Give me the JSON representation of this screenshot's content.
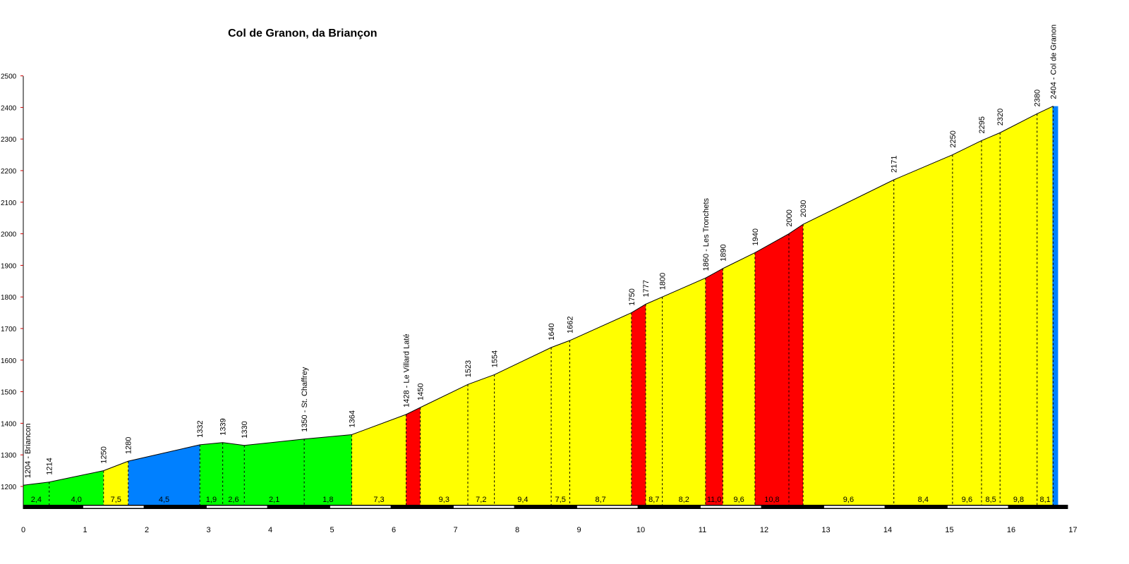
{
  "title": "Col de Granon, da Briançon",
  "chart_data": {
    "type": "area",
    "title": "Col de Granon, da Briançon",
    "xlabel": "",
    "ylabel": "",
    "xlim": [
      0,
      17
    ],
    "ylim": [
      1140,
      2500
    ],
    "x_ticks": [
      0,
      1,
      2,
      3,
      4,
      5,
      6,
      7,
      8,
      9,
      10,
      11,
      12,
      13,
      14,
      15,
      16,
      17
    ],
    "y_ticks": [
      1200,
      1300,
      1400,
      1500,
      1600,
      1700,
      1800,
      1900,
      2000,
      2100,
      2200,
      2300,
      2400,
      2500
    ],
    "grid": false,
    "profile": [
      {
        "km": 0.0,
        "alt": 1204,
        "label": "1204 - Briancon"
      },
      {
        "km": 0.42,
        "alt": 1214,
        "label": "1214"
      },
      {
        "km": 1.3,
        "alt": 1250,
        "label": "1250"
      },
      {
        "km": 1.7,
        "alt": 1280,
        "label": "1280"
      },
      {
        "km": 2.86,
        "alt": 1332,
        "label": "1332"
      },
      {
        "km": 3.23,
        "alt": 1339,
        "label": "1339"
      },
      {
        "km": 3.58,
        "alt": 1330,
        "label": "1330"
      },
      {
        "km": 4.55,
        "alt": 1350,
        "label": "1350 - St. Chaffrey"
      },
      {
        "km": 5.32,
        "alt": 1364,
        "label": "1364"
      },
      {
        "km": 6.2,
        "alt": 1428,
        "label": "1428 - Le Villard Laté"
      },
      {
        "km": 6.43,
        "alt": 1450,
        "label": "1450"
      },
      {
        "km": 7.2,
        "alt": 1523,
        "label": "1523"
      },
      {
        "km": 7.63,
        "alt": 1554,
        "label": "1554"
      },
      {
        "km": 8.55,
        "alt": 1640,
        "label": "1640"
      },
      {
        "km": 8.85,
        "alt": 1662,
        "label": "1662"
      },
      {
        "km": 9.85,
        "alt": 1750,
        "label": "1750"
      },
      {
        "km": 10.08,
        "alt": 1777,
        "label": "1777"
      },
      {
        "km": 10.35,
        "alt": 1800,
        "label": "1800"
      },
      {
        "km": 11.05,
        "alt": 1860,
        "label": "1860 - Les Tronchets"
      },
      {
        "km": 11.33,
        "alt": 1890,
        "label": "1890"
      },
      {
        "km": 11.85,
        "alt": 1940,
        "label": "1940"
      },
      {
        "km": 12.4,
        "alt": 2000,
        "label": "2000"
      },
      {
        "km": 12.63,
        "alt": 2030,
        "label": "2030"
      },
      {
        "km": 14.1,
        "alt": 2171,
        "label": "2171"
      },
      {
        "km": 15.05,
        "alt": 2250,
        "label": "2250"
      },
      {
        "km": 15.52,
        "alt": 2295,
        "label": "2295"
      },
      {
        "km": 15.82,
        "alt": 2320,
        "label": "2320"
      },
      {
        "km": 16.42,
        "alt": 2380,
        "label": "2380"
      },
      {
        "km": 16.68,
        "alt": 2404,
        "label": "2404 - Col de Granon"
      }
    ],
    "segments": [
      {
        "gradient": "2,4",
        "color": "#00ff00"
      },
      {
        "gradient": "4,0",
        "color": "#00ff00"
      },
      {
        "gradient": "7,5",
        "color": "#ffff00"
      },
      {
        "gradient": "4,5",
        "color": "#0080ff"
      },
      {
        "gradient": "1,9",
        "color": "#00ff00"
      },
      {
        "gradient": "2,6",
        "color": "#00ff00"
      },
      {
        "gradient": "2,1",
        "color": "#00ff00"
      },
      {
        "gradient": "1,8",
        "color": "#00ff00"
      },
      {
        "gradient": "7,3",
        "color": "#ffff00"
      },
      {
        "gradient": "",
        "color": "#ff0000"
      },
      {
        "gradient": "9,3",
        "color": "#ffff00"
      },
      {
        "gradient": "7,2",
        "color": "#ffff00"
      },
      {
        "gradient": "9,4",
        "color": "#ffff00"
      },
      {
        "gradient": "7,5",
        "color": "#ffff00"
      },
      {
        "gradient": "8,7",
        "color": "#ffff00"
      },
      {
        "gradient": "",
        "color": "#ff0000"
      },
      {
        "gradient": "8,7",
        "color": "#ffff00"
      },
      {
        "gradient": "8,2",
        "color": "#ffff00"
      },
      {
        "gradient": "11,0",
        "color": "#ff0000"
      },
      {
        "gradient": "9,6",
        "color": "#ffff00"
      },
      {
        "gradient": "10,8",
        "color": "#ff0000"
      },
      {
        "gradient": "",
        "color": "#ff0000"
      },
      {
        "gradient": "9,6",
        "color": "#ffff00"
      },
      {
        "gradient": "8,4",
        "color": "#ffff00"
      },
      {
        "gradient": "9,6",
        "color": "#ffff00"
      },
      {
        "gradient": "8,5",
        "color": "#ffff00"
      },
      {
        "gradient": "9,8",
        "color": "#ffff00"
      },
      {
        "gradient": "8,1",
        "color": "#ffff00"
      }
    ],
    "colors": {
      "green": "#00ff00",
      "yellow": "#ffff00",
      "red": "#ff0000",
      "blue": "#0080ff",
      "axis": "#000000",
      "y_tick_mark": "#cc0000"
    }
  }
}
